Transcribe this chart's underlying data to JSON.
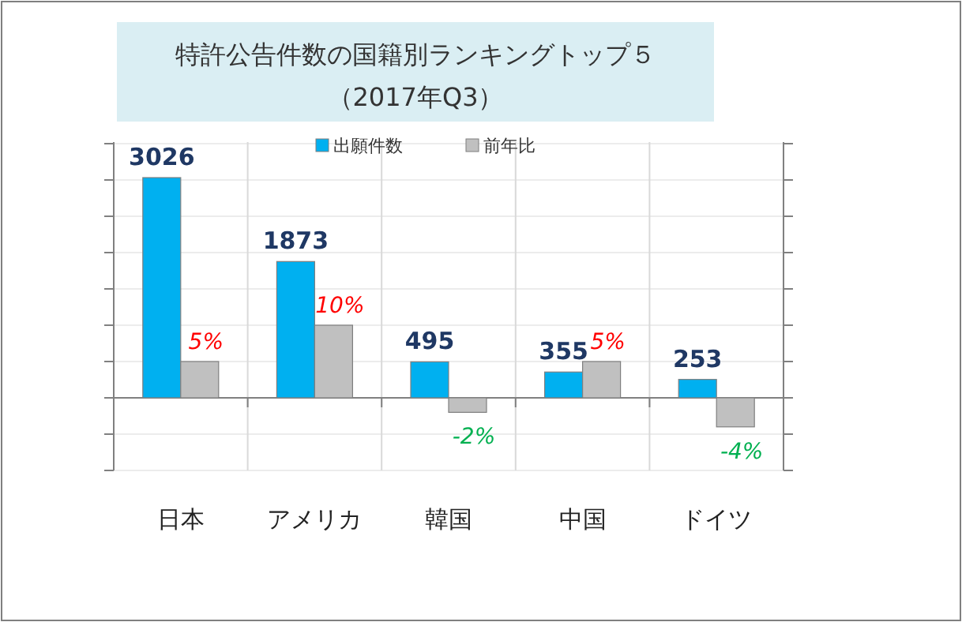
{
  "chart_data": {
    "type": "bar",
    "title": "特許公告件数の国籍別ランキングトップ５",
    "subtitle": "（2017年Q3）",
    "categories": [
      "日本",
      "アメリカ",
      "韓国",
      "中国",
      "ドイツ"
    ],
    "series": [
      {
        "name": "出願件数",
        "color": "#00b0f0",
        "values": [
          3026,
          1873,
          495,
          355,
          253
        ],
        "value_labels": [
          "3026",
          "1873",
          "495",
          "355",
          "253"
        ]
      },
      {
        "name": "前年比",
        "color": "#c0c0c0",
        "axis": "y2",
        "values": [
          5,
          10,
          -2,
          5,
          -4
        ],
        "value_labels": [
          "5%",
          "10%",
          "-2%",
          "5%",
          "-4%"
        ]
      }
    ],
    "legend": "top",
    "grid": true
  }
}
